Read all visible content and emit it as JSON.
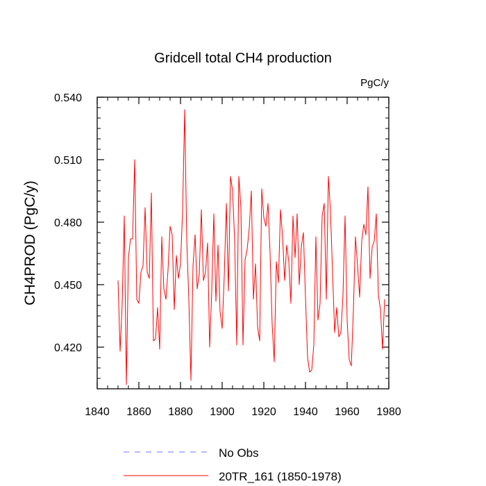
{
  "chart_data": {
    "type": "line",
    "title": "Gridcell total CH4 production",
    "units": "PgC/y",
    "ylabel": "CH4PROD  (PgC/y)",
    "xlabel": "",
    "xlim": [
      1840,
      1980
    ],
    "ylim": [
      0.4,
      0.54
    ],
    "xticks": [
      1840,
      1860,
      1880,
      1900,
      1920,
      1940,
      1960,
      1980
    ],
    "yticks": [
      0.42,
      0.45,
      0.48,
      0.51,
      0.54
    ],
    "ytick_labels": [
      "0.420",
      "0.450",
      "0.480",
      "0.510",
      "0.540"
    ],
    "xminor_step": 5,
    "yminor_step": 0.005,
    "grid": false,
    "legend_position": "bottom",
    "series": [
      {
        "name": "No Obs",
        "color": "#7070ff",
        "style": "dashed",
        "x": [],
        "values": []
      },
      {
        "name": "20TR_161 (1850-1978)",
        "color": "#ff0000",
        "style": "solid",
        "x": [
          1850,
          1851,
          1852,
          1853,
          1854,
          1855,
          1856,
          1857,
          1858,
          1859,
          1860,
          1861,
          1862,
          1863,
          1864,
          1865,
          1866,
          1867,
          1868,
          1869,
          1870,
          1871,
          1872,
          1873,
          1874,
          1875,
          1876,
          1877,
          1878,
          1879,
          1880,
          1881,
          1882,
          1883,
          1884,
          1885,
          1886,
          1887,
          1888,
          1889,
          1890,
          1891,
          1892,
          1893,
          1894,
          1895,
          1896,
          1897,
          1898,
          1899,
          1900,
          1901,
          1902,
          1903,
          1904,
          1905,
          1906,
          1907,
          1908,
          1909,
          1910,
          1911,
          1912,
          1913,
          1914,
          1915,
          1916,
          1917,
          1918,
          1919,
          1920,
          1921,
          1922,
          1923,
          1924,
          1925,
          1926,
          1927,
          1928,
          1929,
          1930,
          1931,
          1932,
          1933,
          1934,
          1935,
          1936,
          1937,
          1938,
          1939,
          1940,
          1941,
          1942,
          1943,
          1944,
          1945,
          1946,
          1947,
          1948,
          1949,
          1950,
          1951,
          1952,
          1953,
          1954,
          1955,
          1956,
          1957,
          1958,
          1959,
          1960,
          1961,
          1962,
          1963,
          1964,
          1965,
          1966,
          1967,
          1968,
          1969,
          1970,
          1971,
          1972,
          1973,
          1974,
          1975,
          1976,
          1977,
          1978
        ],
        "values": [
          0.452,
          0.418,
          0.441,
          0.483,
          0.402,
          0.463,
          0.472,
          0.472,
          0.51,
          0.443,
          0.441,
          0.456,
          0.459,
          0.487,
          0.456,
          0.453,
          0.494,
          0.423,
          0.424,
          0.439,
          0.419,
          0.473,
          0.448,
          0.443,
          0.457,
          0.478,
          0.474,
          0.438,
          0.464,
          0.453,
          0.46,
          0.485,
          0.534,
          0.471,
          0.443,
          0.404,
          0.459,
          0.474,
          0.448,
          0.455,
          0.486,
          0.452,
          0.456,
          0.47,
          0.42,
          0.447,
          0.484,
          0.442,
          0.469,
          0.437,
          0.429,
          0.454,
          0.489,
          0.447,
          0.502,
          0.495,
          0.471,
          0.421,
          0.502,
          0.487,
          0.421,
          0.462,
          0.467,
          0.477,
          0.495,
          0.443,
          0.46,
          0.43,
          0.423,
          0.496,
          0.482,
          0.478,
          0.489,
          0.465,
          0.431,
          0.413,
          0.461,
          0.451,
          0.486,
          0.473,
          0.452,
          0.469,
          0.461,
          0.441,
          0.483,
          0.463,
          0.484,
          0.45,
          0.468,
          0.475,
          0.444,
          0.415,
          0.408,
          0.409,
          0.421,
          0.473,
          0.433,
          0.441,
          0.483,
          0.489,
          0.443,
          0.502,
          0.485,
          0.456,
          0.427,
          0.439,
          0.425,
          0.427,
          0.445,
          0.483,
          0.433,
          0.414,
          0.411,
          0.438,
          0.473,
          0.459,
          0.444,
          0.471,
          0.479,
          0.474,
          0.497,
          0.453,
          0.468,
          0.471,
          0.484,
          0.445,
          0.438,
          0.419,
          0.443
        ]
      }
    ]
  }
}
